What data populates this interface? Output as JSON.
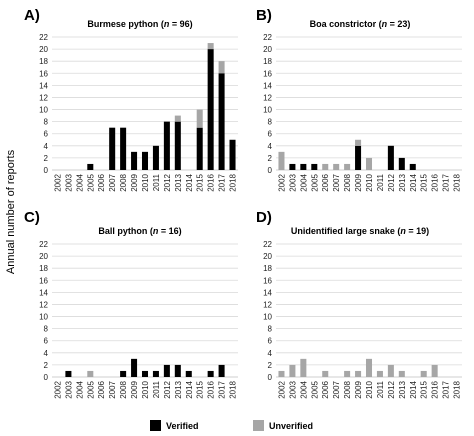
{
  "figure": {
    "ylabel": "Annual number of reports",
    "legend": [
      {
        "label": "Verified",
        "color": "#000000"
      },
      {
        "label": "Unverified",
        "color": "#a6a6a6"
      }
    ]
  },
  "chart_data": [
    {
      "type": "bar",
      "stacked": true,
      "panel": "A)",
      "title": "Burmese  python",
      "n_label": "(n = 96)",
      "categories": [
        "2002",
        "2003",
        "2004",
        "2005",
        "2006",
        "2007",
        "2008",
        "2009",
        "2010",
        "2011",
        "2012",
        "2013",
        "2014",
        "2015",
        "2016",
        "2017",
        "2018"
      ],
      "series": [
        {
          "name": "Verified",
          "color": "#000000",
          "values": [
            0,
            0,
            0,
            1,
            0,
            7,
            7,
            3,
            3,
            4,
            8,
            8,
            0,
            7,
            20,
            16,
            5
          ]
        },
        {
          "name": "Unverified",
          "color": "#a6a6a6",
          "values": [
            0,
            0,
            0,
            0,
            0,
            0,
            0,
            0,
            0,
            0,
            0,
            1,
            0,
            3,
            1,
            2,
            0
          ]
        }
      ],
      "yticks": [
        "0",
        "2",
        "4",
        "6",
        "8",
        "10",
        "12",
        "14",
        "16",
        "18",
        "20",
        "22"
      ],
      "ylim": [
        0,
        22
      ],
      "grid": true
    },
    {
      "type": "bar",
      "stacked": true,
      "panel": "B)",
      "title": "Boa constrictor",
      "n_label": "(n = 23)",
      "categories": [
        "2002",
        "2003",
        "2004",
        "2005",
        "2006",
        "2007",
        "2008",
        "2009",
        "2010",
        "2011",
        "2012",
        "2013",
        "2014",
        "2015",
        "2016",
        "2017",
        "2018"
      ],
      "series": [
        {
          "name": "Verified",
          "color": "#000000",
          "values": [
            0,
            1,
            1,
            1,
            0,
            0,
            0,
            4,
            0,
            0,
            4,
            2,
            1,
            0,
            0,
            0,
            0
          ]
        },
        {
          "name": "Unverified",
          "color": "#a6a6a6",
          "values": [
            3,
            0,
            0,
            0,
            1,
            1,
            1,
            1,
            2,
            0,
            0,
            0,
            0,
            0,
            0,
            0,
            0
          ]
        }
      ],
      "yticks": [
        "0",
        "2",
        "4",
        "6",
        "8",
        "10",
        "12",
        "14",
        "16",
        "18",
        "20",
        "22"
      ],
      "ylim": [
        0,
        22
      ],
      "grid": true
    },
    {
      "type": "bar",
      "stacked": true,
      "panel": "C)",
      "title": "Ball python",
      "n_label": "(n = 16)",
      "categories": [
        "2002",
        "2003",
        "2004",
        "2005",
        "2006",
        "2007",
        "2008",
        "2009",
        "2010",
        "2011",
        "2012",
        "2013",
        "2014",
        "2015",
        "2016",
        "2017",
        "2018"
      ],
      "series": [
        {
          "name": "Verified",
          "color": "#000000",
          "values": [
            0,
            1,
            0,
            0,
            0,
            0,
            1,
            3,
            1,
            1,
            2,
            2,
            1,
            0,
            1,
            2,
            0
          ]
        },
        {
          "name": "Unverified",
          "color": "#a6a6a6",
          "values": [
            0,
            0,
            0,
            1,
            0,
            0,
            0,
            0,
            0,
            0,
            0,
            0,
            0,
            0,
            0,
            0,
            0
          ]
        }
      ],
      "yticks": [
        "0",
        "2",
        "4",
        "6",
        "8",
        "10",
        "12",
        "14",
        "16",
        "18",
        "20",
        "22"
      ],
      "ylim": [
        0,
        22
      ],
      "grid": true
    },
    {
      "type": "bar",
      "stacked": true,
      "panel": "D)",
      "title": "Unidentified  large snake",
      "n_label": "(n = 19)",
      "categories": [
        "2002",
        "2003",
        "2004",
        "2005",
        "2006",
        "2007",
        "2008",
        "2009",
        "2010",
        "2011",
        "2012",
        "2013",
        "2014",
        "2015",
        "2016",
        "2017",
        "2018"
      ],
      "series": [
        {
          "name": "Verified",
          "color": "#000000",
          "values": [
            0,
            0,
            0,
            0,
            0,
            0,
            0,
            0,
            0,
            0,
            0,
            0,
            0,
            0,
            0,
            0,
            0
          ]
        },
        {
          "name": "Unverified",
          "color": "#a6a6a6",
          "values": [
            1,
            2,
            3,
            0,
            1,
            0,
            1,
            1,
            3,
            1,
            2,
            1,
            0,
            1,
            2,
            0,
            0
          ]
        }
      ],
      "yticks": [
        "0",
        "2",
        "4",
        "6",
        "8",
        "10",
        "12",
        "14",
        "16",
        "18",
        "20",
        "22"
      ],
      "ylim": [
        0,
        22
      ],
      "grid": true
    }
  ]
}
